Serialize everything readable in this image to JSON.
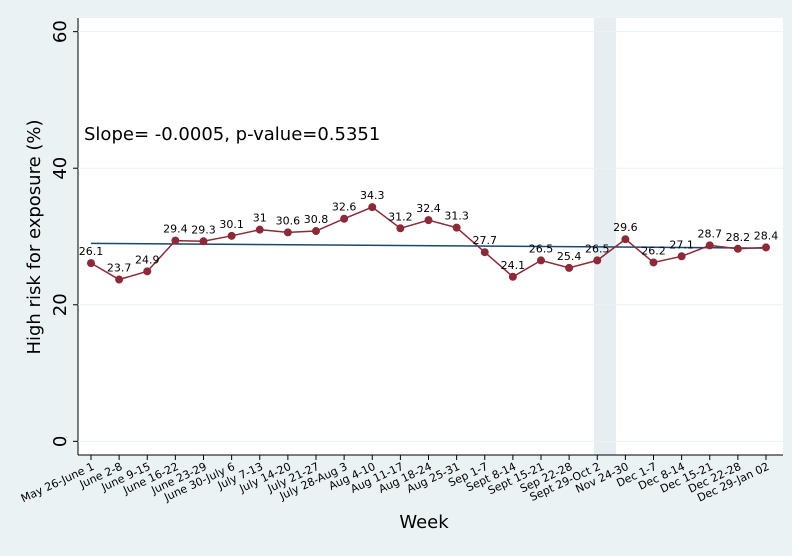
{
  "chart_data": {
    "type": "line",
    "annotation": "Slope= -0.0005, p-value=0.5351",
    "y_label": "High risk for exposure (%)",
    "x_label": "Week",
    "categories": [
      "May 26-June 1",
      "June 2-8",
      "June 9-15",
      "June 16-22",
      "June 23-29",
      "June 30-July 6",
      "July 7-13",
      "July 14-20",
      "July 21-27",
      "July 28-Aug 3",
      "Aug 4-10",
      "Aug 11-17",
      "Aug 18-24",
      "Aug 25-31",
      "Sep 1-7",
      "Sept 8-14",
      "Sept 15-21",
      "Sep 22-28",
      "Sept 29-Oct 2",
      "Nov 24-30",
      "Dec 1-7",
      "Dec 8-14",
      "Dec 15-21",
      "Dec 22-28",
      "Dec 29-Jan 02"
    ],
    "values": [
      26.1,
      23.7,
      24.9,
      29.4,
      29.3,
      30.1,
      31,
      30.6,
      30.8,
      32.6,
      34.3,
      31.2,
      32.4,
      31.3,
      27.7,
      24.1,
      26.5,
      25.4,
      26.5,
      29.6,
      26.2,
      27.1,
      28.7,
      28.2,
      28.4
    ],
    "color": "#8b2a38",
    "trend_line": {
      "values": [
        29.0,
        28.3
      ],
      "color": "#1a476f"
    },
    "ylim": [
      -2,
      62
    ],
    "yticks": [
      0,
      20,
      40,
      60
    ],
    "grid": true
  }
}
